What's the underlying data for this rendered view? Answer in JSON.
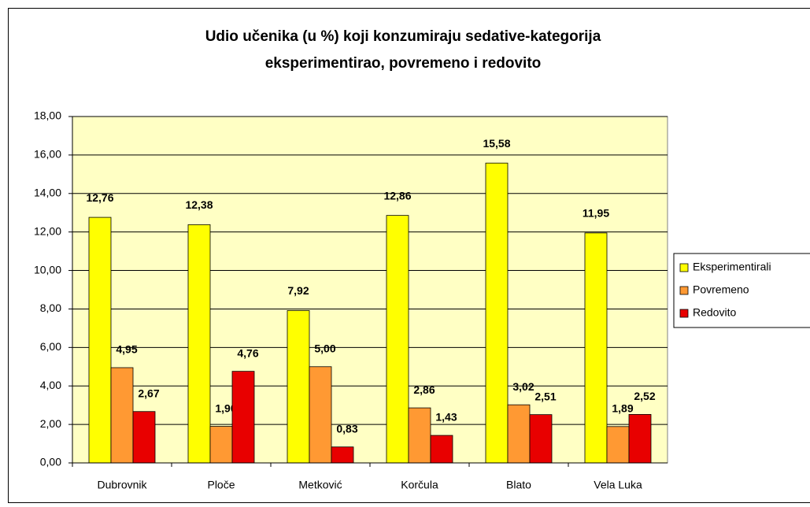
{
  "chart_data": {
    "type": "bar",
    "title": [
      "Udio učenika (u %) koji konzumiraju sedative-kategorija",
      "eksperimentirao, povremeno i redovito"
    ],
    "categories": [
      "Dubrovnik",
      "Ploče",
      "Metković",
      "Korčula",
      "Blato",
      "Vela Luka"
    ],
    "series": [
      {
        "name": "Eksperimentirali",
        "color": "#ffff00",
        "values": [
          12.76,
          12.38,
          7.92,
          12.86,
          15.58,
          11.95
        ],
        "value_labels": [
          "12,76",
          "12,38",
          "7,92",
          "12,86",
          "15,58",
          "11,95"
        ]
      },
      {
        "name": "Povremeno",
        "color": "#ff9933",
        "values": [
          4.95,
          1.9,
          5.0,
          2.86,
          3.02,
          1.89
        ],
        "value_labels": [
          "4,95",
          "1,90",
          "5,00",
          "2,86",
          "3,02",
          "1,89"
        ]
      },
      {
        "name": "Redovito",
        "color": "#e80000",
        "values": [
          2.67,
          4.76,
          0.83,
          1.43,
          2.51,
          2.52
        ],
        "value_labels": [
          "2,67",
          "4,76",
          "0,83",
          "1,43",
          "2,51",
          "2,52"
        ]
      }
    ],
    "ylim": [
      0,
      18
    ],
    "yticks": [
      {
        "value": 0,
        "label": "0,00"
      },
      {
        "value": 2,
        "label": "2,00"
      },
      {
        "value": 4,
        "label": "4,00"
      },
      {
        "value": 6,
        "label": "6,00"
      },
      {
        "value": 8,
        "label": "8,00"
      },
      {
        "value": 10,
        "label": "10,00"
      },
      {
        "value": 12,
        "label": "12,00"
      },
      {
        "value": 14,
        "label": "14,00"
      },
      {
        "value": 16,
        "label": "16,00"
      },
      {
        "value": 18,
        "label": "18,00"
      }
    ],
    "grid": true,
    "legend": "right",
    "plot_background": "#ffffc4"
  }
}
